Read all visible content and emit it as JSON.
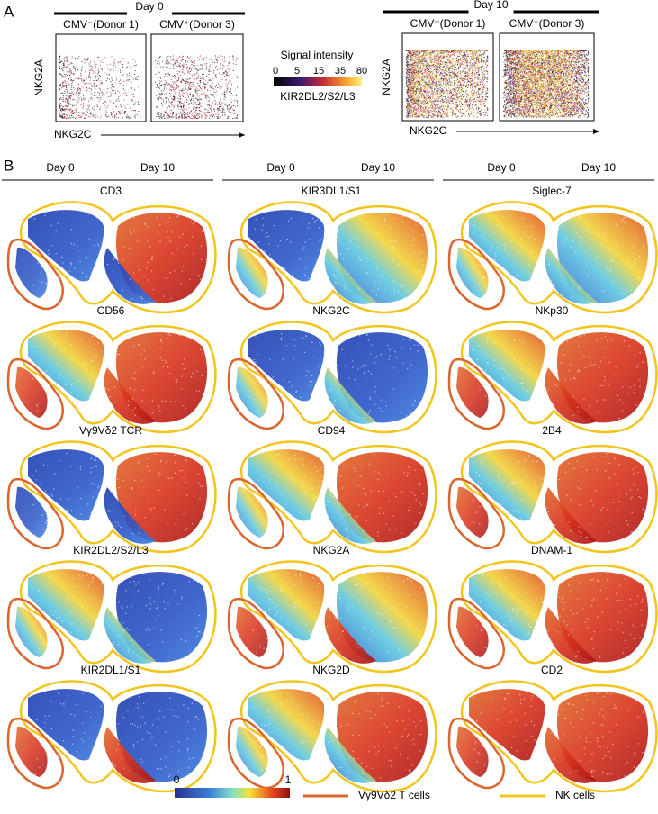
{
  "panel_a": {
    "label": "A",
    "day0": {
      "header": "Day 0",
      "plots": [
        "CMV⁻(Donor 1)",
        "CMV⁺(Donor 3)"
      ],
      "y_label": "NKG2A",
      "x_label": "NKG2C"
    },
    "day10": {
      "header": "Day 10",
      "plots": [
        "CMV⁻(Donor 1)",
        "CMV⁺(Donor 3)"
      ],
      "y_label": "NKG2A",
      "x_label": "NKG2C"
    },
    "colorbar": {
      "title": "Signal intensity",
      "ticks": [
        0,
        5,
        15,
        35,
        80
      ],
      "label": "KIR2DL2/S2/L3"
    }
  },
  "panel_b": {
    "label": "B",
    "columns": [
      {
        "headers": [
          "Day 0",
          "Day 10"
        ],
        "markers": [
          "CD3",
          "CD56",
          "Vγ9Vδ2 TCR",
          "KIR2DL2/S2/L3",
          "KIR2DL1/S1"
        ]
      },
      {
        "headers": [
          "Day 0",
          "Day 10"
        ],
        "markers": [
          "KIR3DL1/S1",
          "NKG2C",
          "CD94",
          "NKG2A",
          "NKG2D"
        ]
      },
      {
        "headers": [
          "Day 0",
          "Day 10"
        ],
        "markers": [
          "Siglec-7",
          "NKp30",
          "2B4",
          "DNAM-1",
          "CD2"
        ]
      }
    ],
    "colorbar": {
      "ticks": [
        0,
        1
      ]
    },
    "legend": [
      "Vγ9Vδ2 T cells",
      "NK cells"
    ]
  }
}
